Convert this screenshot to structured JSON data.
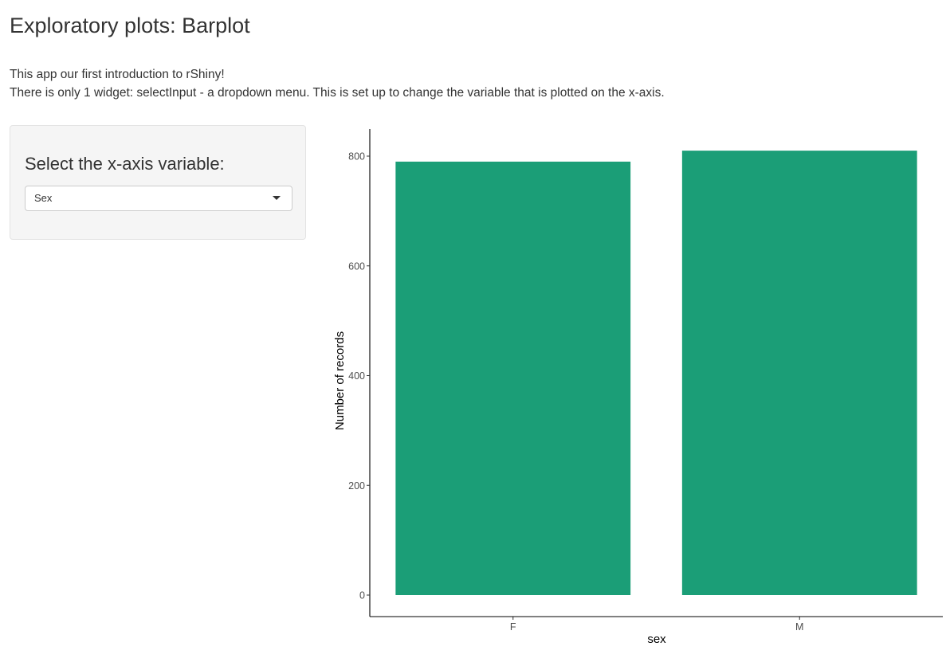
{
  "page": {
    "title": "Exploratory plots: Barplot",
    "intro_lines": [
      "This app our first introduction to rShiny!",
      "There is only 1 widget: selectInput - a dropdown menu. This is set up to change the variable that is plotted on the x-axis."
    ]
  },
  "sidebar": {
    "label": "Select the x-axis variable:",
    "select": {
      "value": "Sex",
      "icon": "caret-down-icon"
    }
  },
  "chart_data": {
    "type": "bar",
    "categories": [
      "F",
      "M"
    ],
    "values": [
      790,
      810
    ],
    "xlabel": "sex",
    "ylabel": "Number of records",
    "ylim": [
      0,
      850
    ],
    "yticks": [
      0,
      200,
      400,
      600,
      800
    ],
    "bar_color": "#1b9e77",
    "grid": false
  }
}
